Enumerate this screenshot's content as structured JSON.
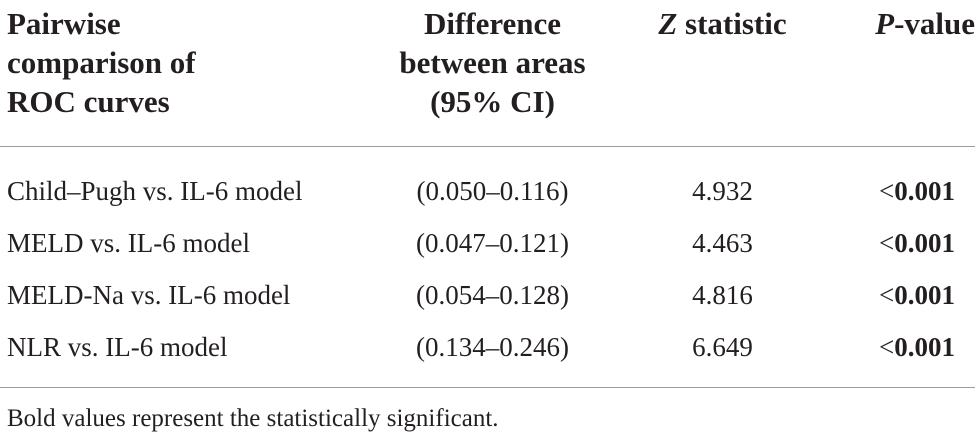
{
  "table": {
    "headers": {
      "col1": [
        "Pairwise",
        "comparison of",
        "ROC curves"
      ],
      "col2": [
        "Difference",
        "between areas",
        "(95% CI)"
      ],
      "col3": {
        "italic": "Z",
        "rest": " statistic"
      },
      "col4": {
        "italic": "P",
        "rest": "-value"
      }
    },
    "rows": [
      {
        "comparison": "Child–Pugh vs. IL-6 model",
        "ci": "(0.050–0.116)",
        "z": "4.932",
        "p_prefix": "<",
        "p_value": "0.001"
      },
      {
        "comparison": "MELD vs. IL-6 model",
        "ci": "(0.047–0.121)",
        "z": "4.463",
        "p_prefix": "<",
        "p_value": "0.001"
      },
      {
        "comparison": "MELD-Na vs. IL-6 model",
        "ci": "(0.054–0.128)",
        "z": "4.816",
        "p_prefix": "<",
        "p_value": "0.001"
      },
      {
        "comparison": "NLR vs. IL-6 model",
        "ci": "(0.134–0.246)",
        "z": "6.649",
        "p_prefix": "<",
        "p_value": "0.001"
      }
    ],
    "footnote": "Bold values represent the statistically significant."
  }
}
